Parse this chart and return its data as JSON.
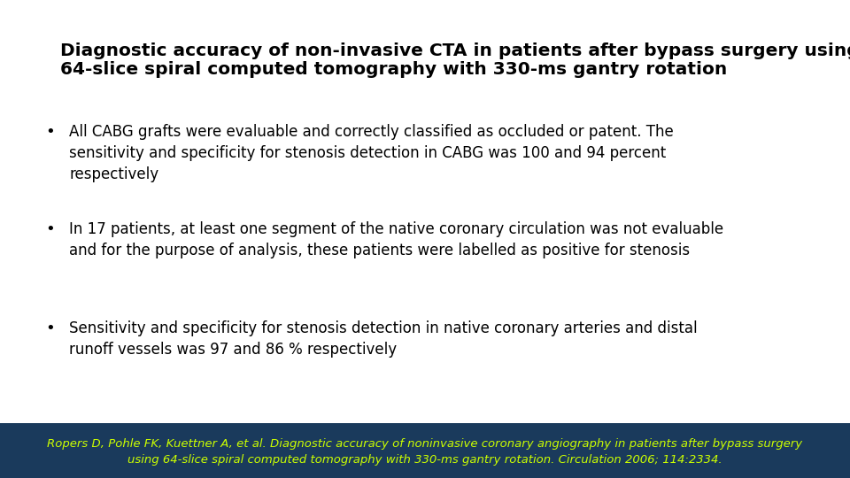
{
  "title_line1": "Diagnostic accuracy of non-invasive CTA in patients after bypass surgery using",
  "title_line2": "64-slice spiral computed tomography with 330-ms gantry rotation",
  "title_fontsize": 14.5,
  "title_color": "#000000",
  "bullet_lines": [
    [
      "All CABG grafts were evaluable and correctly classified as occluded or patent. The",
      "sensitivity and specificity for stenosis detection in CABG was 100 and 94 percent",
      "respectively"
    ],
    [
      "In 17 patients, at least one segment of the native coronary circulation was not evaluable",
      "and for the purpose of analysis, these patients were labelled as positive for stenosis"
    ],
    [
      "Sensitivity and specificity for stenosis detection in native coronary arteries and distal",
      "runoff vessels was 97 and 86 % respectively"
    ]
  ],
  "bullet_fontsize": 12.0,
  "bullet_color": "#000000",
  "footer_line1": "Ropers D, Pohle FK, Kuettner A, et al. Diagnostic accuracy of noninvasive coronary angiography in patients after bypass surgery",
  "footer_line2": "using 64-slice spiral computed tomography with 330-ms gantry rotation. Circulation 2006; 114:2334.",
  "footer_fontsize": 9.5,
  "footer_color": "#ccff00",
  "footer_bg_color": "#1a3a5c",
  "background_color": "#ffffff"
}
